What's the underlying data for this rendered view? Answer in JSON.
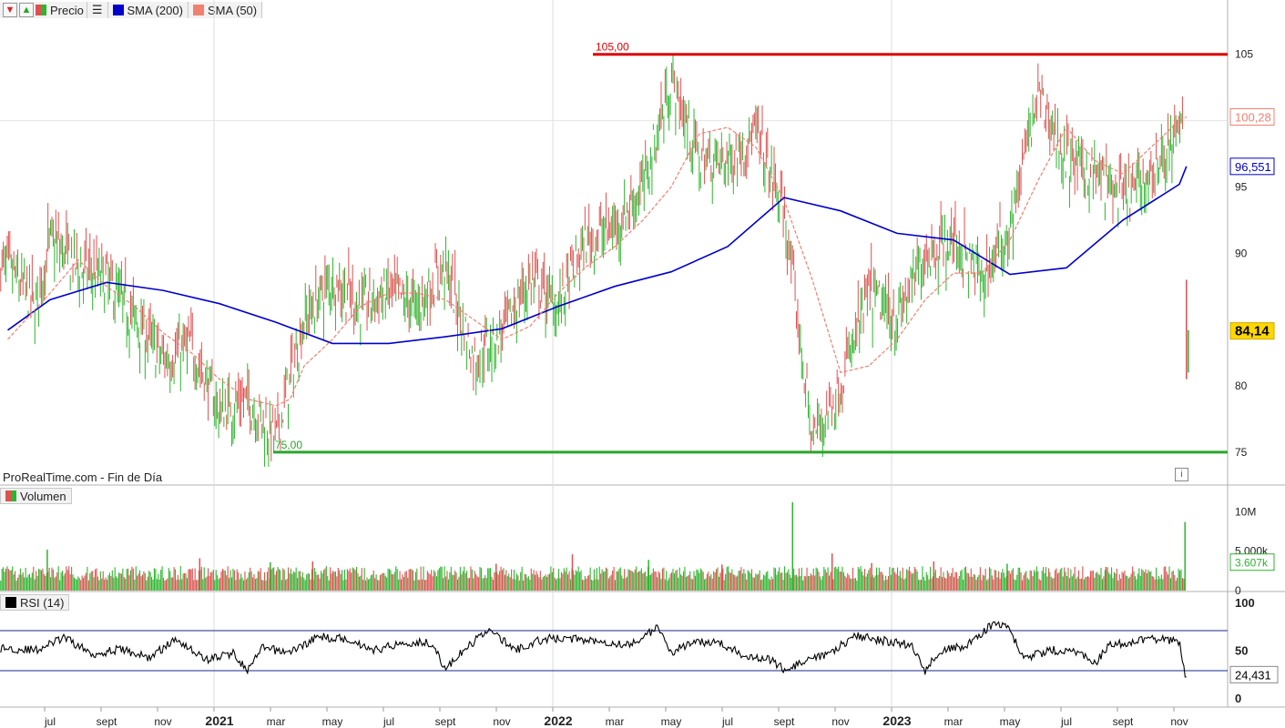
{
  "legend": {
    "price_label": "Precio",
    "sma200_label": "SMA (200)",
    "sma50_label": "SMA (50)",
    "volume_label": "Volumen",
    "rsi_label": "RSI (14)",
    "colors": {
      "sma200": "#0000cc",
      "sma50": "#f08070",
      "up": "#2db52d",
      "down": "#e05050"
    }
  },
  "footer_text": "ProRealTime.com - Fin de Día",
  "chart_data": [
    {
      "type": "candlestick",
      "title": "",
      "ylim": [
        73,
        108
      ],
      "yticks": [
        "75",
        "80",
        "90",
        "95",
        "105"
      ],
      "support_level": {
        "value": 75,
        "label": "75,00",
        "color": "#2aa52a"
      },
      "resistance_level": {
        "value": 105,
        "label": "105,00",
        "color": "#dd0000"
      },
      "last_price": {
        "value": 84.14,
        "label": "84,14"
      },
      "sma50_last": {
        "value": 100.28,
        "label": "100,28"
      },
      "sma200_last": {
        "value": 96.551,
        "label": "96,551"
      },
      "x_axis": {
        "labels": [
          "jul",
          "sept",
          "nov",
          "2021",
          "mar",
          "may",
          "jul",
          "sept",
          "nov",
          "2022",
          "mar",
          "may",
          "jul",
          "sept",
          "nov",
          "2023",
          "mar",
          "may",
          "jul",
          "sept",
          "nov"
        ],
        "months_from_start": [
          0,
          2,
          4,
          6,
          8,
          10,
          12,
          14,
          16,
          18,
          20,
          22,
          24,
          26,
          28,
          30,
          32,
          34,
          36,
          38,
          40
        ],
        "bold": [
          "2021",
          "2022",
          "2023"
        ]
      },
      "series": [
        {
          "kind": "price_path",
          "months": [
            -1.5,
            -0.5,
            0,
            1,
            2,
            3,
            4,
            5,
            6,
            7,
            8,
            9,
            10,
            11,
            12,
            13,
            14,
            15,
            16,
            17,
            18,
            19,
            20,
            21,
            22,
            23,
            24,
            25,
            26,
            27,
            28,
            29,
            30,
            31,
            32,
            33,
            34,
            35,
            36,
            37,
            38,
            39,
            40,
            40.1,
            40.25
          ],
          "close": [
            89,
            86,
            91,
            89,
            88,
            85,
            82,
            83,
            78,
            79,
            76,
            85,
            88,
            86,
            87,
            86,
            89,
            82,
            84,
            88,
            86,
            91,
            92,
            95,
            103,
            97,
            97,
            99,
            93,
            76,
            80,
            87,
            85,
            90,
            91,
            88,
            92,
            102,
            97,
            96,
            94,
            96,
            99,
            101,
            84.14
          ]
        },
        {
          "name": "SMA (200)",
          "months": [
            -1.5,
            0,
            2,
            4,
            6,
            8,
            10,
            12,
            14,
            16,
            18,
            20,
            22,
            24,
            26,
            28,
            30,
            32,
            34,
            36,
            38,
            40,
            40.25
          ],
          "values": [
            84.2,
            86.5,
            87.8,
            87.2,
            86.2,
            84.8,
            83.2,
            83.2,
            83.7,
            84.3,
            86,
            87.5,
            88.6,
            90.5,
            94.2,
            93.2,
            91.5,
            91,
            88.4,
            88.9,
            92.5,
            95.2,
            96.55
          ]
        },
        {
          "name": "SMA (50)",
          "months": [
            -1.5,
            0,
            1,
            2,
            3,
            4,
            5,
            6,
            7,
            8,
            8.5,
            9,
            10,
            11,
            12,
            13,
            14,
            15,
            16,
            17,
            18,
            19,
            20,
            21,
            22,
            23,
            24,
            25,
            26,
            27,
            28,
            29,
            30,
            31,
            32,
            33,
            34,
            35,
            36,
            37,
            38,
            39,
            40,
            40.25
          ],
          "values": [
            83.5,
            87,
            89.5,
            87.5,
            86,
            84,
            82.5,
            80.5,
            79,
            78.5,
            79,
            81.5,
            83.5,
            86,
            87,
            87,
            86.5,
            85,
            83.5,
            84.5,
            87,
            89,
            90.5,
            92.5,
            95,
            99,
            99.5,
            98,
            94,
            88,
            81,
            81.5,
            83.5,
            86.5,
            88.5,
            88.5,
            91,
            95.5,
            99.5,
            97,
            96,
            98,
            100,
            100.28
          ]
        }
      ]
    },
    {
      "type": "bar",
      "title": "",
      "ylim": [
        0,
        12000000
      ],
      "yticks": [
        "10M",
        "5.000k",
        "0"
      ],
      "last_value": {
        "value": 3607000,
        "label": "3.607k"
      },
      "series": [
        {
          "name": "Volumen",
          "typical": 2300000,
          "spikes_months": [
            -0.1,
            5.3,
            7.8,
            9.3,
            15.8,
            18.5,
            21.2,
            23.8,
            26.3,
            27.7,
            29.1,
            31.3,
            33.9,
            37.4,
            40.2
          ],
          "spikes_values": [
            5200000,
            4100000,
            3600000,
            3700000,
            3400000,
            4600000,
            3900000,
            3300000,
            11200000,
            4700000,
            3500000,
            3700000,
            3400000,
            3000000,
            8700000
          ]
        }
      ]
    },
    {
      "type": "line",
      "title": "",
      "ylim": [
        0,
        100
      ],
      "yticks": [
        "100",
        "50",
        "0"
      ],
      "bands": [
        28.6,
        70.5
      ],
      "last_value": {
        "value": 24.431,
        "label": "24,431"
      },
      "series": [
        {
          "name": "RSI (14)",
          "months": [
            -1.5,
            -0.5,
            0.5,
            1.5,
            2.5,
            3.5,
            4.5,
            5.5,
            6.5,
            7,
            7.5,
            8.5,
            9.5,
            10.5,
            11.5,
            12.5,
            13.5,
            14,
            14.5,
            15.5,
            16.5,
            17.5,
            18.5,
            19.5,
            20.5,
            21.5,
            22,
            22.5,
            23.5,
            24.5,
            25.5,
            26,
            26.5,
            27.5,
            28.5,
            29.5,
            30.5,
            31,
            31.5,
            32.5,
            33.5,
            34,
            34.5,
            35.5,
            36.5,
            37,
            37.5,
            38.5,
            39.5,
            40,
            40.2,
            40.25
          ],
          "values": [
            52,
            50,
            63,
            46,
            51,
            42,
            62,
            40,
            47,
            28,
            52,
            48,
            64,
            62,
            50,
            58,
            58,
            30,
            45,
            72,
            50,
            62,
            62,
            60,
            55,
            73,
            48,
            55,
            60,
            46,
            40,
            30,
            35,
            45,
            65,
            60,
            55,
            28,
            50,
            55,
            80,
            70,
            42,
            50,
            48,
            35,
            55,
            60,
            62,
            58,
            25,
            24.4
          ]
        }
      ]
    }
  ]
}
